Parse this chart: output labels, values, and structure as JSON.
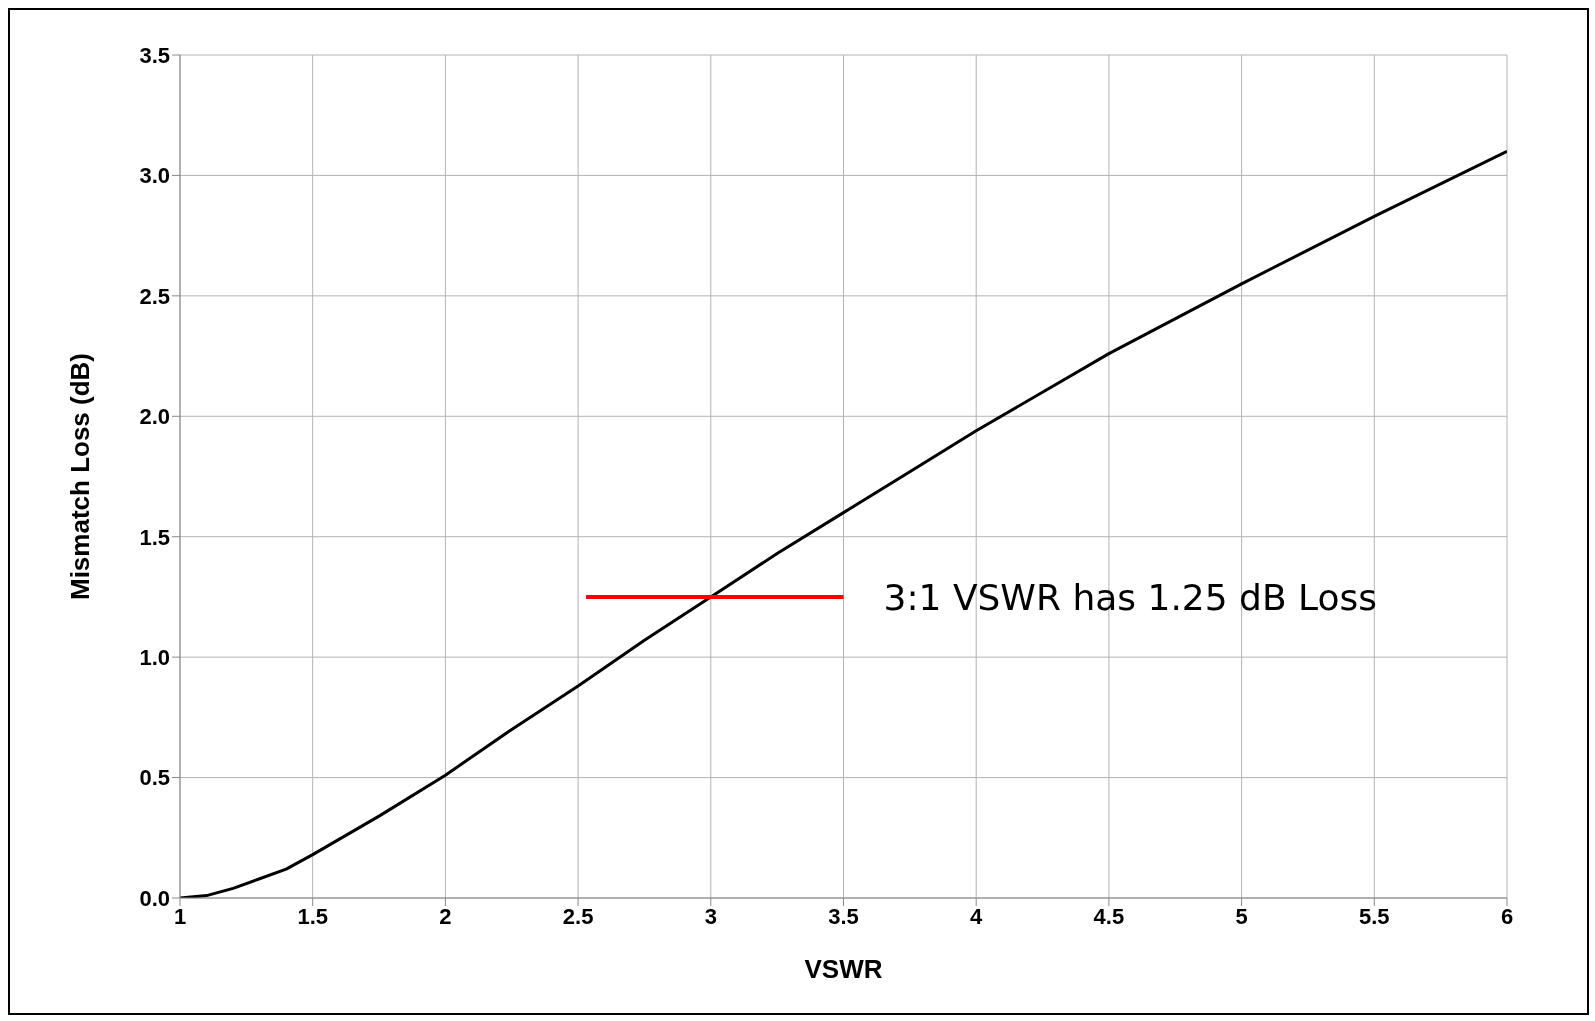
{
  "chart_data": {
    "type": "line",
    "xlabel": "VSWR",
    "ylabel": "Mismatch Loss (dB)",
    "xlim": [
      1,
      6
    ],
    "xticks": [
      1,
      1.5,
      2,
      2.5,
      3,
      3.5,
      4,
      4.5,
      5,
      5.5,
      6
    ],
    "ylim": [
      0,
      3.5
    ],
    "yticks": [
      {
        "value": 0,
        "label": "0.0"
      },
      0.5,
      {
        "value": 1,
        "label": "1.0"
      },
      1.5,
      {
        "value": 2,
        "label": "2.0"
      },
      2.5,
      {
        "value": 3,
        "label": "3.0"
      },
      3.5
    ],
    "grid": true,
    "legend": false,
    "marker": "none",
    "line_style": "solid",
    "series": [
      {
        "color": "#000000",
        "x": [
          1,
          1.1,
          1.2,
          1.3,
          1.4,
          1.5,
          1.75,
          2,
          2.25,
          2.5,
          2.75,
          3,
          3.25,
          3.5,
          3.75,
          4,
          4.5,
          5,
          5.5,
          6
        ],
        "values": [
          0,
          0.01,
          0.04,
          0.08,
          0.12,
          0.18,
          0.34,
          0.51,
          0.7,
          0.88,
          1.07,
          1.25,
          1.43,
          1.6,
          1.77,
          1.94,
          2.26,
          2.55,
          2.83,
          3.1
        ]
      },
      {
        "color": "#ff0000",
        "x": [
          2.53,
          3.5
        ],
        "values": [
          1.25,
          1.25
        ]
      }
    ],
    "annotations": [
      "3:1 VSWR has 1.25 dB Loss"
    ]
  }
}
